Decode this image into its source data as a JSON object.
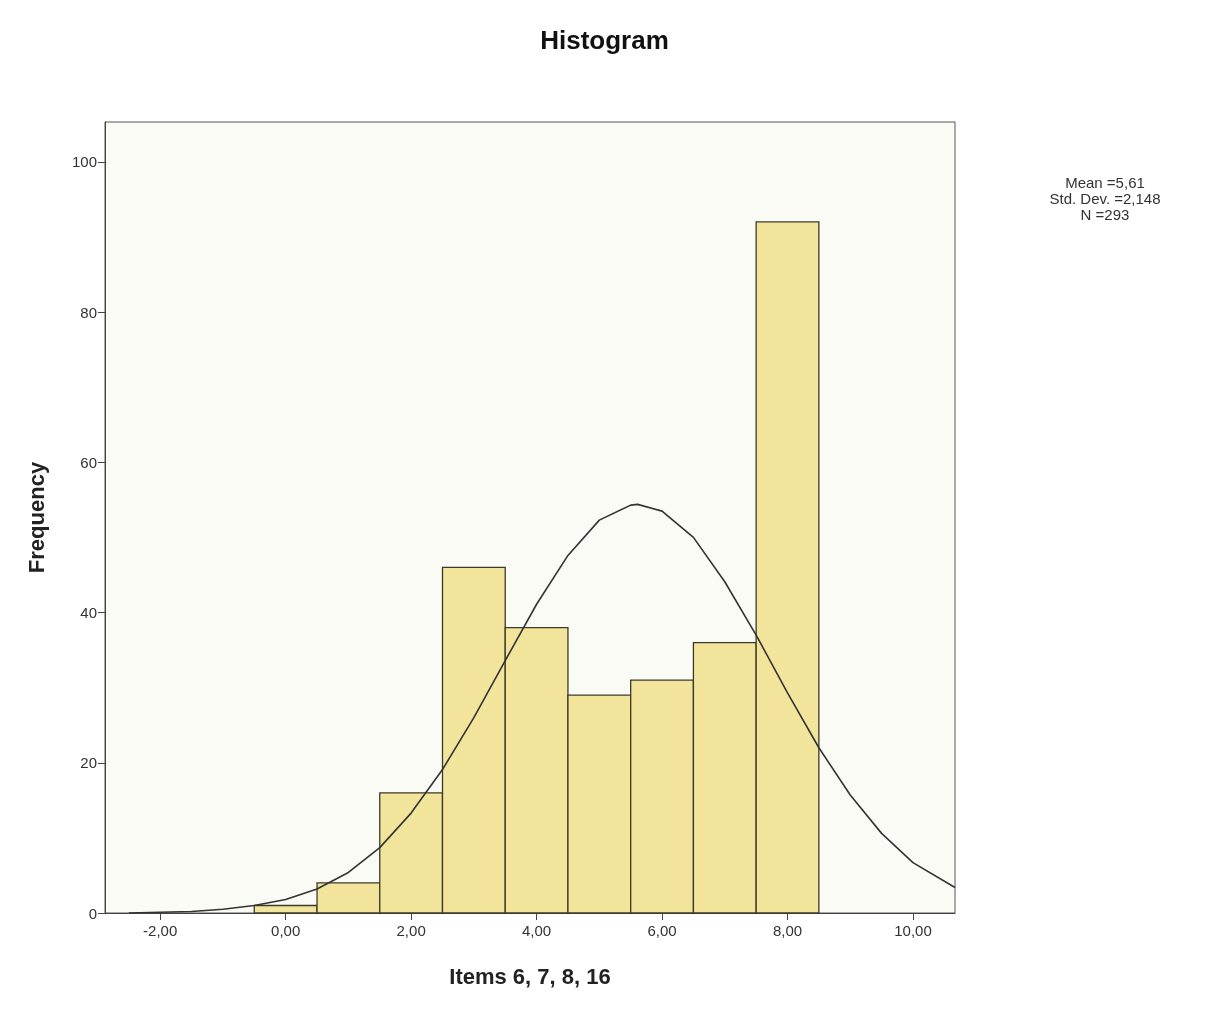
{
  "chart_data": {
    "type": "histogram",
    "title": "Histogram",
    "xlabel": "Items 6, 7, 8, 16",
    "ylabel": "Frequency",
    "bins": [
      -0.5,
      0.5,
      1.5,
      2.5,
      3.5,
      4.5,
      5.5,
      6.5,
      7.5,
      8.5
    ],
    "series": [
      {
        "color": "#f2e59b",
        "values": [
          1,
          4,
          16,
          46,
          38,
          29,
          31,
          36,
          92
        ]
      },
      {
        "type": "line",
        "color": "#333333",
        "x": [
          -2.5,
          -2,
          -1.5,
          -1,
          -0.5,
          0,
          0.5,
          1,
          1.5,
          2,
          2.5,
          3,
          3.5,
          4,
          4.5,
          5,
          5.5,
          5.61,
          6,
          6.5,
          7,
          7.5,
          8,
          8.5,
          9,
          9.5,
          10,
          10.67
        ],
        "values": [
          0,
          0.1,
          0.2,
          0.5,
          1,
          1.8,
          3.2,
          5.4,
          8.7,
          13.3,
          19.1,
          26,
          33.6,
          41.1,
          47.6,
          52.3,
          54.3,
          54.4,
          53.5,
          50,
          44.1,
          37,
          29.3,
          22,
          15.7,
          10.6,
          6.7,
          3.4
        ]
      }
    ],
    "xlim": [
      -2.88,
      10.67
    ],
    "xticks": [
      {
        "value": -2,
        "label": "-2,00"
      },
      {
        "value": 0,
        "label": "0,00"
      },
      {
        "value": 2,
        "label": "2,00"
      },
      {
        "value": 4,
        "label": "4,00"
      },
      {
        "value": 6,
        "label": "6,00"
      },
      {
        "value": 8,
        "label": "8,00"
      },
      {
        "value": 10,
        "label": "10,00"
      }
    ],
    "ylim": [
      0,
      105.3
    ],
    "yticks": [
      0,
      20,
      40,
      60,
      80,
      100
    ],
    "grid": false,
    "marker": "none",
    "line_style": "solid",
    "annotations": [
      "Mean =5,61",
      "Std. Dev. =2,148",
      "N =293"
    ]
  }
}
